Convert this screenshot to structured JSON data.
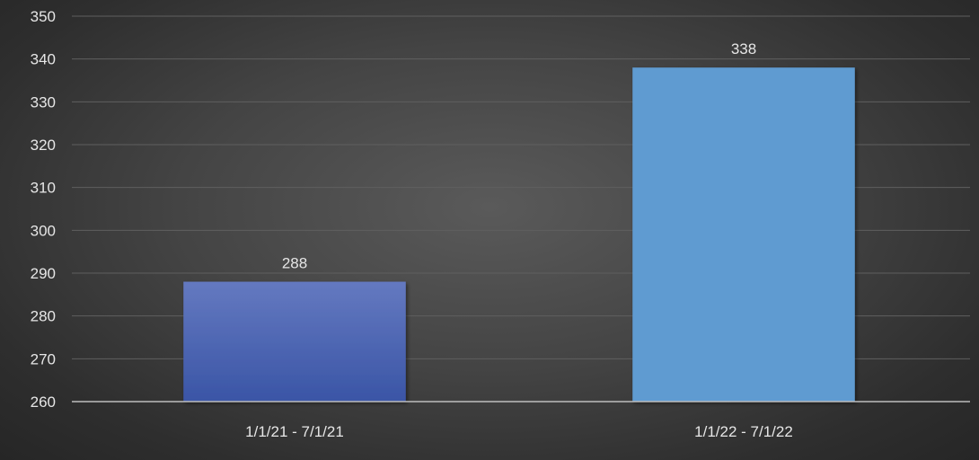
{
  "chart_data": {
    "type": "bar",
    "categories": [
      "1/1/21 - 7/1/21",
      "1/1/22 - 7/1/22"
    ],
    "values": [
      288,
      338
    ],
    "data_labels": [
      "288",
      "338"
    ],
    "title": "",
    "xlabel": "",
    "ylabel": "",
    "ylim": [
      260,
      350
    ],
    "yticks": [
      260,
      270,
      280,
      290,
      300,
      310,
      320,
      330,
      340,
      350
    ],
    "ytick_labels": [
      "260",
      "270",
      "280",
      "290",
      "300",
      "310",
      "320",
      "330",
      "340",
      "350"
    ],
    "grid": true,
    "legend": "none",
    "colors": {
      "bar_1_top": "#6479c0",
      "bar_1_bottom": "#3a55a6",
      "bar_2": "#5e9bd1",
      "gridline": "#5f5f5f",
      "text": "#e6e6e6"
    }
  }
}
